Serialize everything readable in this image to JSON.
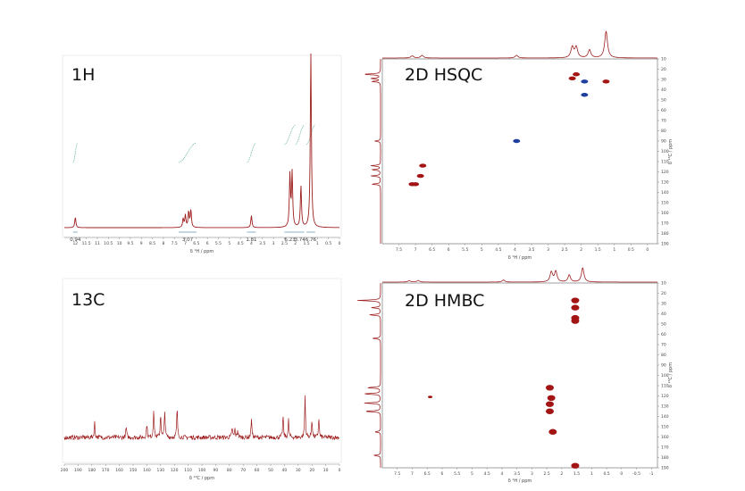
{
  "colors": {
    "spectrum": "#9e1f1f",
    "positive": "#a31515",
    "negative": "#1f3f9e",
    "integral": "#5fae97",
    "frame": "#777777"
  },
  "chart_data": [
    {
      "id": "h1",
      "type": "line",
      "title": "1H",
      "xlabel": "δ ¹H / ppm",
      "xlim": [
        12.5,
        0.0
      ],
      "xticks": [
        12.0,
        11.5,
        11.0,
        10.5,
        10.0,
        9.5,
        9.0,
        8.5,
        8.0,
        7.5,
        7.0,
        6.5,
        6.0,
        5.5,
        5.0,
        4.5,
        4.0,
        3.5,
        3.0,
        2.5,
        2.0,
        1.5,
        1.0,
        0.5,
        0.0
      ],
      "peaks": [
        {
          "ppm": 12.0,
          "height": 0.06
        },
        {
          "ppm": 7.1,
          "height": 0.05
        },
        {
          "ppm": 7.0,
          "height": 0.07
        },
        {
          "ppm": 6.85,
          "height": 0.09
        },
        {
          "ppm": 6.75,
          "height": 0.1
        },
        {
          "ppm": 4.0,
          "height": 0.07
        },
        {
          "ppm": 2.25,
          "height": 0.3
        },
        {
          "ppm": 2.15,
          "height": 0.31
        },
        {
          "ppm": 1.75,
          "height": 0.24
        },
        {
          "ppm": 1.3,
          "height": 1.0
        }
      ],
      "integrals": [
        {
          "label": "0.94",
          "from": 12.1,
          "to": 11.9
        },
        {
          "label": "3.07",
          "from": 7.3,
          "to": 6.5
        },
        {
          "label": "1.81",
          "from": 4.2,
          "to": 3.8
        },
        {
          "label": "6.23",
          "from": 2.5,
          "to": 2.0
        },
        {
          "label": "3.74",
          "from": 2.0,
          "to": 1.6
        },
        {
          "label": "6.76",
          "from": 1.5,
          "to": 1.1
        }
      ]
    },
    {
      "id": "c13",
      "type": "line",
      "title": "13C",
      "xlabel": "δ ¹³C / ppm",
      "xlim": [
        200,
        0
      ],
      "xticks": [
        200,
        190,
        180,
        170,
        160,
        150,
        140,
        130,
        120,
        110,
        100,
        90,
        80,
        70,
        60,
        50,
        40,
        30,
        20,
        10,
        0
      ],
      "peaks": [
        {
          "ppm": 178,
          "height": 0.25
        },
        {
          "ppm": 155,
          "height": 0.17
        },
        {
          "ppm": 140,
          "height": 0.22
        },
        {
          "ppm": 135,
          "height": 0.47
        },
        {
          "ppm": 130,
          "height": 0.38
        },
        {
          "ppm": 127,
          "height": 0.45
        },
        {
          "ppm": 118,
          "height": 0.47
        },
        {
          "ppm": 78,
          "height": 0.16
        },
        {
          "ppm": 76,
          "height": 0.13
        },
        {
          "ppm": 74,
          "height": 0.12
        },
        {
          "ppm": 64,
          "height": 0.32
        },
        {
          "ppm": 41,
          "height": 0.35
        },
        {
          "ppm": 37,
          "height": 0.28
        },
        {
          "ppm": 25,
          "height": 0.67
        },
        {
          "ppm": 20,
          "height": 0.3
        },
        {
          "ppm": 15,
          "height": 0.32
        }
      ]
    },
    {
      "id": "hsqc",
      "type": "scatter",
      "title": "2D HSQC",
      "xlabel": "δ ¹H / ppm",
      "ylabel": "δ ¹³C / ppm",
      "xlim": [
        8.0,
        -0.3
      ],
      "ylim": [
        10,
        190
      ],
      "xticks": [
        7.5,
        7.0,
        6.5,
        6.0,
        5.5,
        5.0,
        4.5,
        4.0,
        3.5,
        3.0,
        2.5,
        2.0,
        1.5,
        1.0,
        0.5,
        0.0
      ],
      "yticks": [
        10,
        20,
        30,
        40,
        50,
        60,
        70,
        80,
        90,
        100,
        110,
        120,
        130,
        140,
        150,
        160,
        170,
        180,
        190
      ],
      "cross_peaks": [
        {
          "h": 2.27,
          "c": 29,
          "phase": "positive"
        },
        {
          "h": 2.15,
          "c": 25,
          "phase": "positive"
        },
        {
          "h": 1.9,
          "c": 32,
          "phase": "negative"
        },
        {
          "h": 1.9,
          "c": 45,
          "phase": "negative"
        },
        {
          "h": 1.25,
          "c": 32,
          "phase": "positive"
        },
        {
          "h": 3.95,
          "c": 90,
          "phase": "negative"
        },
        {
          "h": 6.78,
          "c": 114,
          "phase": "positive"
        },
        {
          "h": 6.85,
          "c": 124,
          "phase": "positive"
        },
        {
          "h": 7.1,
          "c": 132,
          "phase": "positive"
        },
        {
          "h": 7.0,
          "c": 132,
          "phase": "positive"
        }
      ]
    },
    {
      "id": "hmbc",
      "type": "scatter",
      "title": "2D HMBC",
      "xlabel": "δ ¹H / ppm",
      "ylabel": "δ ¹³C / ppm",
      "xlim": [
        8.0,
        -1.2
      ],
      "ylim": [
        10,
        190
      ],
      "xticks": [
        7.5,
        7.0,
        6.5,
        6.0,
        5.5,
        5.0,
        4.5,
        4.0,
        3.5,
        3.0,
        2.5,
        2.0,
        1.5,
        1.0,
        0.5,
        0.0,
        -0.5,
        -1.0
      ],
      "yticks": [
        10,
        20,
        30,
        40,
        50,
        60,
        70,
        80,
        90,
        100,
        110,
        120,
        130,
        140,
        150,
        160,
        170,
        180,
        190
      ],
      "cross_peaks": [
        {
          "h": 1.55,
          "c": 27
        },
        {
          "h": 1.55,
          "c": 34
        },
        {
          "h": 1.55,
          "c": 44
        },
        {
          "h": 1.55,
          "c": 47
        },
        {
          "h": 2.4,
          "c": 112
        },
        {
          "h": 2.35,
          "c": 122
        },
        {
          "h": 2.4,
          "c": 128
        },
        {
          "h": 2.4,
          "c": 135
        },
        {
          "h": 2.3,
          "c": 155
        },
        {
          "h": 1.55,
          "c": 188
        },
        {
          "h": 6.4,
          "c": 121
        }
      ]
    }
  ]
}
